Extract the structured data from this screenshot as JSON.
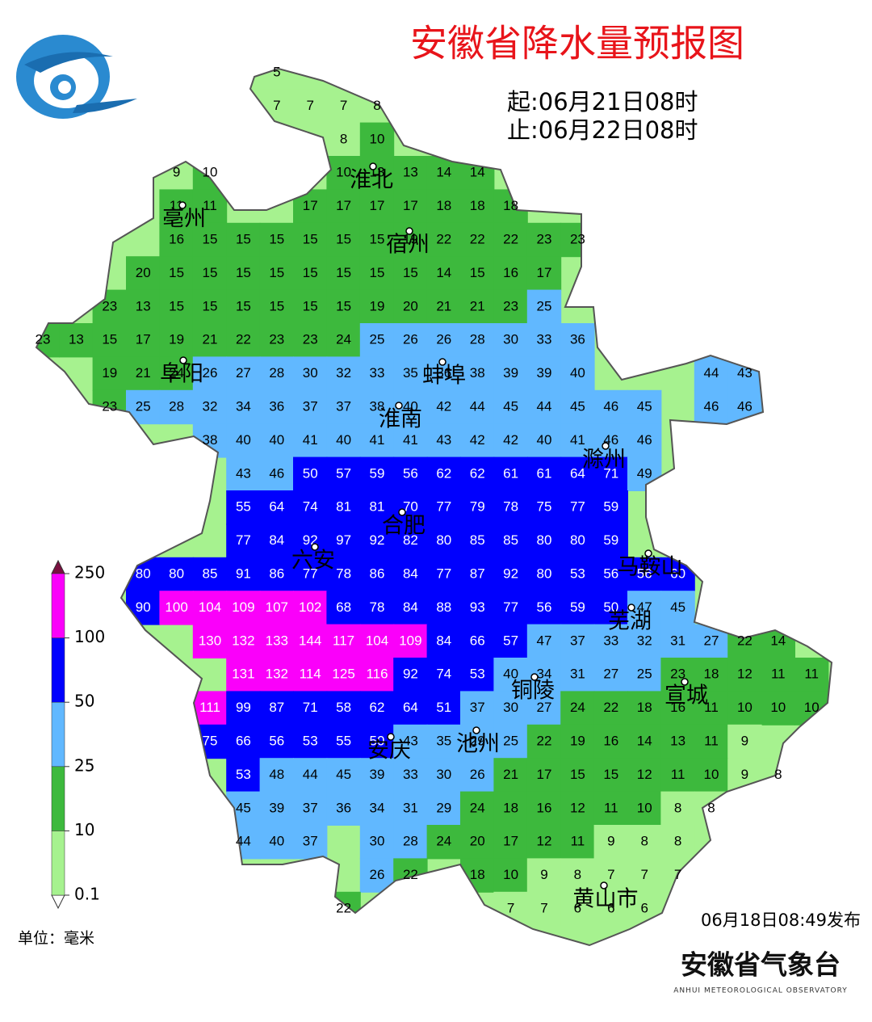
{
  "header": {
    "title": "安徽省降水量预报图",
    "start": "起:06月21日08时",
    "end": "止:06月22日08时"
  },
  "legend": {
    "levels": [
      0.1,
      10,
      25,
      50,
      100,
      250
    ],
    "colors": [
      "#a6f28f",
      "#3db93d",
      "#61b8ff",
      "#0000fe",
      "#fa00fa"
    ],
    "unit": "单位：毫米"
  },
  "cities": [
    "淮北",
    "亳州",
    "宿州",
    "蚌埠",
    "阜阳",
    "淮南",
    "滁州",
    "合肥",
    "六安",
    "马鞍山",
    "芜湖",
    "宣城",
    "铜陵",
    "池州",
    "安庆",
    "黄山市"
  ],
  "grid": {
    "rows": [
      [
        null,
        null,
        null,
        null,
        null,
        null,
        null,
        5,
        null,
        null,
        null,
        null,
        null,
        null,
        null,
        null,
        null,
        null,
        null,
        null,
        null,
        null,
        null,
        null
      ],
      [
        null,
        null,
        null,
        null,
        null,
        null,
        null,
        7,
        7,
        7,
        8,
        null,
        null,
        null,
        null,
        null,
        null,
        null,
        null,
        null,
        null,
        null,
        null,
        null
      ],
      [
        null,
        null,
        null,
        null,
        null,
        null,
        null,
        null,
        null,
        8,
        10,
        null,
        null,
        null,
        null,
        null,
        null,
        null,
        null,
        null,
        null,
        null,
        null,
        null
      ],
      [
        null,
        null,
        null,
        null,
        9,
        10,
        null,
        null,
        null,
        10,
        13,
        13,
        14,
        14,
        null,
        null,
        null,
        null,
        null,
        null,
        null,
        null,
        null,
        null
      ],
      [
        null,
        null,
        null,
        null,
        11,
        11,
        null,
        null,
        17,
        17,
        17,
        17,
        18,
        18,
        18,
        null,
        null,
        null,
        null,
        null,
        null,
        null,
        null,
        null
      ],
      [
        null,
        null,
        null,
        null,
        16,
        15,
        15,
        15,
        15,
        15,
        15,
        19,
        22,
        22,
        22,
        23,
        23,
        null,
        null,
        null,
        null,
        null,
        null,
        null
      ],
      [
        null,
        null,
        null,
        20,
        15,
        15,
        15,
        15,
        15,
        15,
        15,
        15,
        14,
        15,
        16,
        17,
        null,
        null,
        null,
        null,
        null,
        null,
        null,
        null
      ],
      [
        null,
        null,
        23,
        13,
        15,
        15,
        15,
        15,
        15,
        15,
        19,
        20,
        21,
        21,
        23,
        25,
        null,
        null,
        null,
        null,
        null,
        null,
        null,
        null
      ],
      [
        23,
        13,
        15,
        17,
        19,
        21,
        22,
        23,
        23,
        24,
        25,
        26,
        26,
        28,
        30,
        33,
        36,
        null,
        null,
        null,
        null,
        null,
        null,
        null
      ],
      [
        null,
        null,
        19,
        21,
        24,
        26,
        27,
        28,
        30,
        32,
        33,
        35,
        36,
        38,
        39,
        39,
        40,
        null,
        null,
        null,
        44,
        43,
        null,
        null
      ],
      [
        null,
        null,
        23,
        25,
        28,
        32,
        34,
        36,
        37,
        37,
        38,
        40,
        42,
        44,
        45,
        44,
        45,
        46,
        45,
        null,
        46,
        46,
        null,
        null
      ],
      [
        null,
        null,
        null,
        null,
        null,
        38,
        40,
        40,
        41,
        40,
        41,
        41,
        43,
        42,
        42,
        40,
        41,
        46,
        46,
        null,
        null,
        null,
        null,
        null
      ],
      [
        null,
        null,
        null,
        null,
        null,
        null,
        43,
        46,
        50,
        57,
        59,
        56,
        62,
        62,
        61,
        61,
        64,
        71,
        49,
        null,
        null,
        null,
        null,
        null
      ],
      [
        null,
        null,
        null,
        null,
        null,
        null,
        55,
        64,
        74,
        81,
        81,
        70,
        77,
        79,
        78,
        75,
        77,
        59,
        null,
        null,
        null,
        null,
        null,
        null
      ],
      [
        null,
        null,
        null,
        null,
        null,
        null,
        77,
        84,
        92,
        97,
        92,
        82,
        80,
        85,
        85,
        80,
        80,
        59,
        null,
        null,
        null,
        null,
        null,
        null
      ],
      [
        null,
        null,
        null,
        80,
        80,
        85,
        91,
        86,
        77,
        78,
        86,
        84,
        77,
        87,
        92,
        80,
        53,
        56,
        56,
        60,
        null,
        null,
        null,
        null
      ],
      [
        null,
        null,
        null,
        90,
        100,
        104,
        109,
        107,
        102,
        68,
        78,
        84,
        88,
        93,
        77,
        56,
        59,
        50,
        47,
        45,
        null,
        null,
        null,
        null
      ],
      [
        null,
        null,
        null,
        null,
        null,
        130,
        132,
        133,
        144,
        117,
        104,
        109,
        84,
        66,
        57,
        47,
        37,
        33,
        32,
        31,
        27,
        22,
        14,
        null
      ],
      [
        null,
        null,
        null,
        null,
        null,
        null,
        131,
        132,
        114,
        125,
        116,
        92,
        74,
        53,
        40,
        34,
        31,
        27,
        25,
        23,
        18,
        12,
        11,
        11
      ],
      [
        null,
        null,
        null,
        null,
        null,
        111,
        99,
        87,
        71,
        58,
        62,
        64,
        51,
        37,
        30,
        27,
        24,
        22,
        18,
        16,
        11,
        10,
        10,
        10
      ],
      [
        null,
        null,
        null,
        null,
        null,
        75,
        66,
        56,
        53,
        55,
        50,
        43,
        35,
        29,
        25,
        22,
        19,
        16,
        14,
        13,
        11,
        9,
        null,
        null
      ],
      [
        null,
        null,
        null,
        null,
        null,
        null,
        53,
        48,
        44,
        45,
        39,
        33,
        30,
        26,
        21,
        17,
        15,
        15,
        12,
        11,
        10,
        9,
        8,
        null
      ],
      [
        null,
        null,
        null,
        null,
        null,
        null,
        45,
        39,
        37,
        36,
        34,
        31,
        29,
        24,
        18,
        16,
        12,
        11,
        10,
        8,
        8,
        null,
        null,
        null
      ],
      [
        null,
        null,
        null,
        null,
        null,
        null,
        44,
        40,
        37,
        null,
        30,
        28,
        24,
        20,
        17,
        12,
        11,
        9,
        8,
        8,
        null,
        null,
        null,
        null
      ],
      [
        null,
        null,
        null,
        null,
        null,
        null,
        null,
        null,
        null,
        null,
        26,
        22,
        null,
        18,
        10,
        9,
        8,
        7,
        7,
        7,
        null,
        null,
        null,
        null
      ],
      [
        null,
        null,
        null,
        null,
        null,
        null,
        null,
        null,
        null,
        22,
        null,
        null,
        null,
        null,
        7,
        7,
        6,
        6,
        6,
        null,
        null,
        null,
        null,
        null
      ]
    ]
  },
  "footer": {
    "issued": "06月18日08:49发布",
    "org": "安徽省气象台",
    "org_en": "ANHUI METEOROLOGICAL OBSERVATORY"
  }
}
